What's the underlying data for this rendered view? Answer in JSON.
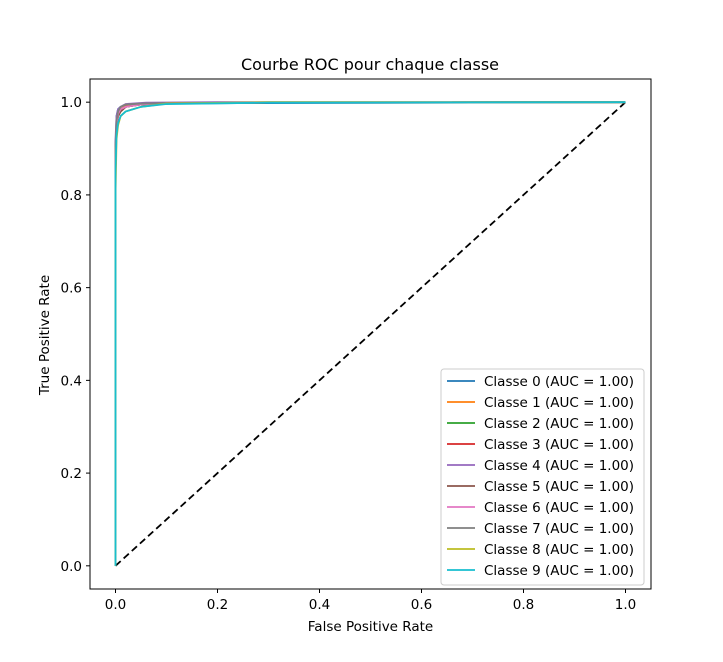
{
  "chart_data": {
    "type": "line",
    "title": "Courbe ROC pour chaque classe",
    "xlabel": "False Positive Rate",
    "ylabel": "True Positive Rate",
    "xlim": [
      -0.05,
      1.05
    ],
    "ylim": [
      -0.05,
      1.05
    ],
    "xticks": [
      0.0,
      0.2,
      0.4,
      0.6,
      0.8,
      1.0
    ],
    "yticks": [
      0.0,
      0.2,
      0.4,
      0.6,
      0.8,
      1.0
    ],
    "xtick_labels": [
      "0.0",
      "0.2",
      "0.4",
      "0.6",
      "0.8",
      "1.0"
    ],
    "ytick_labels": [
      "0.0",
      "0.2",
      "0.4",
      "0.6",
      "0.8",
      "1.0"
    ],
    "legend_position": "lower-right",
    "diagonal": {
      "x": [
        0,
        1
      ],
      "y": [
        0,
        1
      ],
      "color": "#000000",
      "style": "dashed"
    },
    "series": [
      {
        "name": "Classe 0 (AUC = 1.00)",
        "color": "#1f77b4",
        "x": [
          0,
          0,
          0.002,
          0.005,
          0.01,
          0.02,
          0.05,
          0.1,
          0.24,
          0.7,
          1.0
        ],
        "y": [
          0,
          0.9,
          0.97,
          0.985,
          0.99,
          0.993,
          0.995,
          0.997,
          0.998,
          0.999,
          1.0
        ]
      },
      {
        "name": "Classe 1 (AUC = 1.00)",
        "color": "#ff7f0e",
        "x": [
          0,
          0,
          0.002,
          0.005,
          0.01,
          0.02,
          0.05,
          0.1,
          0.3,
          1.0
        ],
        "y": [
          0,
          0.88,
          0.95,
          0.975,
          0.985,
          0.992,
          0.996,
          0.998,
          0.999,
          1.0
        ]
      },
      {
        "name": "Classe 2 (AUC = 1.00)",
        "color": "#2ca02c",
        "x": [
          0,
          0,
          0.002,
          0.005,
          0.01,
          0.02,
          0.05,
          0.1,
          0.3,
          1.0
        ],
        "y": [
          0,
          0.9,
          0.95,
          0.97,
          0.98,
          0.99,
          0.995,
          0.998,
          0.999,
          1.0
        ]
      },
      {
        "name": "Classe 3 (AUC = 1.00)",
        "color": "#d62728",
        "x": [
          0,
          0,
          0.002,
          0.005,
          0.01,
          0.02,
          0.05,
          0.1,
          0.3,
          1.0
        ],
        "y": [
          0,
          0.9,
          0.95,
          0.97,
          0.98,
          0.99,
          0.995,
          0.998,
          0.999,
          1.0
        ]
      },
      {
        "name": "Classe 4 (AUC = 1.00)",
        "color": "#9467bd",
        "x": [
          0,
          0,
          0.002,
          0.005,
          0.01,
          0.02,
          0.06,
          0.2,
          1.0
        ],
        "y": [
          0,
          0.92,
          0.97,
          0.985,
          0.99,
          0.996,
          0.999,
          1.0,
          1.0
        ]
      },
      {
        "name": "Classe 5 (AUC = 1.00)",
        "color": "#8c564b",
        "x": [
          0,
          0,
          0.002,
          0.005,
          0.01,
          0.02,
          0.05,
          0.1,
          0.3,
          1.0
        ],
        "y": [
          0,
          0.9,
          0.95,
          0.97,
          0.98,
          0.99,
          0.995,
          0.998,
          0.999,
          1.0
        ]
      },
      {
        "name": "Classe 6 (AUC = 1.00)",
        "color": "#e377c2",
        "x": [
          0,
          0,
          0.002,
          0.005,
          0.01,
          0.02,
          0.05,
          0.1,
          0.3,
          1.0
        ],
        "y": [
          0,
          0.88,
          0.95,
          0.975,
          0.985,
          0.99,
          0.995,
          0.998,
          0.999,
          1.0
        ]
      },
      {
        "name": "Classe 7 (AUC = 1.00)",
        "color": "#7f7f7f",
        "x": [
          0,
          0,
          0.002,
          0.005,
          0.01,
          0.02,
          0.05,
          0.1,
          0.3,
          1.0
        ],
        "y": [
          0,
          0.9,
          0.96,
          0.98,
          0.99,
          0.995,
          0.997,
          0.998,
          0.999,
          1.0
        ]
      },
      {
        "name": "Classe 8 (AUC = 1.00)",
        "color": "#bcbd22",
        "x": [
          0,
          0,
          0.002,
          0.005,
          0.01,
          0.02,
          0.05,
          0.1,
          0.3,
          1.0
        ],
        "y": [
          0,
          0.8,
          0.92,
          0.95,
          0.97,
          0.98,
          0.99,
          0.997,
          1.0,
          1.0
        ]
      },
      {
        "name": "Classe 9 (AUC = 1.00)",
        "color": "#17becf",
        "x": [
          0,
          0,
          0.002,
          0.005,
          0.01,
          0.02,
          0.05,
          0.1,
          0.3,
          1.0
        ],
        "y": [
          0,
          0.85,
          0.93,
          0.955,
          0.97,
          0.98,
          0.99,
          0.996,
          0.999,
          1.0
        ]
      }
    ]
  }
}
